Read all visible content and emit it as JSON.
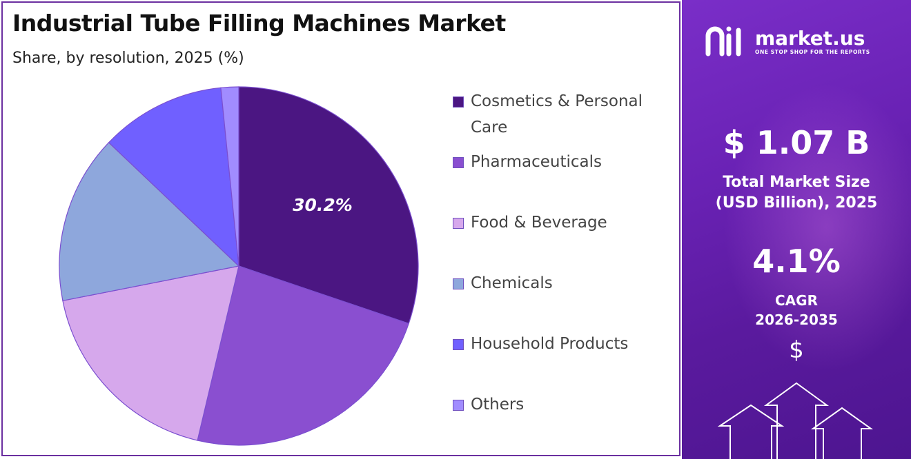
{
  "header": {
    "title": "Industrial Tube Filling Machines Market",
    "subtitle": "Share, by resolution, 2025 (%)"
  },
  "chart_data": {
    "type": "pie",
    "title": "Industrial Tube Filling Machines Market",
    "subtitle": "Share, by resolution, 2025 (%)",
    "categories": [
      "Cosmetics & Personal Care",
      "Pharmaceuticals",
      "Food & Beverage",
      "Chemicals",
      "Household Products",
      "Others"
    ],
    "values": [
      30.2,
      23.5,
      18.2,
      15.2,
      11.3,
      1.6
    ],
    "colors": [
      "#4b1682",
      "#8a4fd0",
      "#d6a8ec",
      "#8ea7dc",
      "#7060ff",
      "#a18cff"
    ],
    "data_labels": [
      "30.2%",
      "",
      "",
      "",
      "",
      ""
    ],
    "legend_position": "right",
    "start_angle": "12 o'clock",
    "direction": "clockwise"
  },
  "sidebar": {
    "brand_name": "market.us",
    "brand_tagline": "ONE STOP SHOP FOR THE REPORTS",
    "market_size_value": "$ 1.07 B",
    "market_size_label_line1": "Total Market Size",
    "market_size_label_line2": "(USD Billion), 2025",
    "cagr_value": "4.1%",
    "cagr_label_line1": "CAGR",
    "cagr_label_line2": "2026-2035",
    "currency_symbol": "$",
    "accent_color": "#6a22b5"
  },
  "icons": {
    "logo": "market-us-logo-icon",
    "arrows": "growth-arrows-icon"
  }
}
